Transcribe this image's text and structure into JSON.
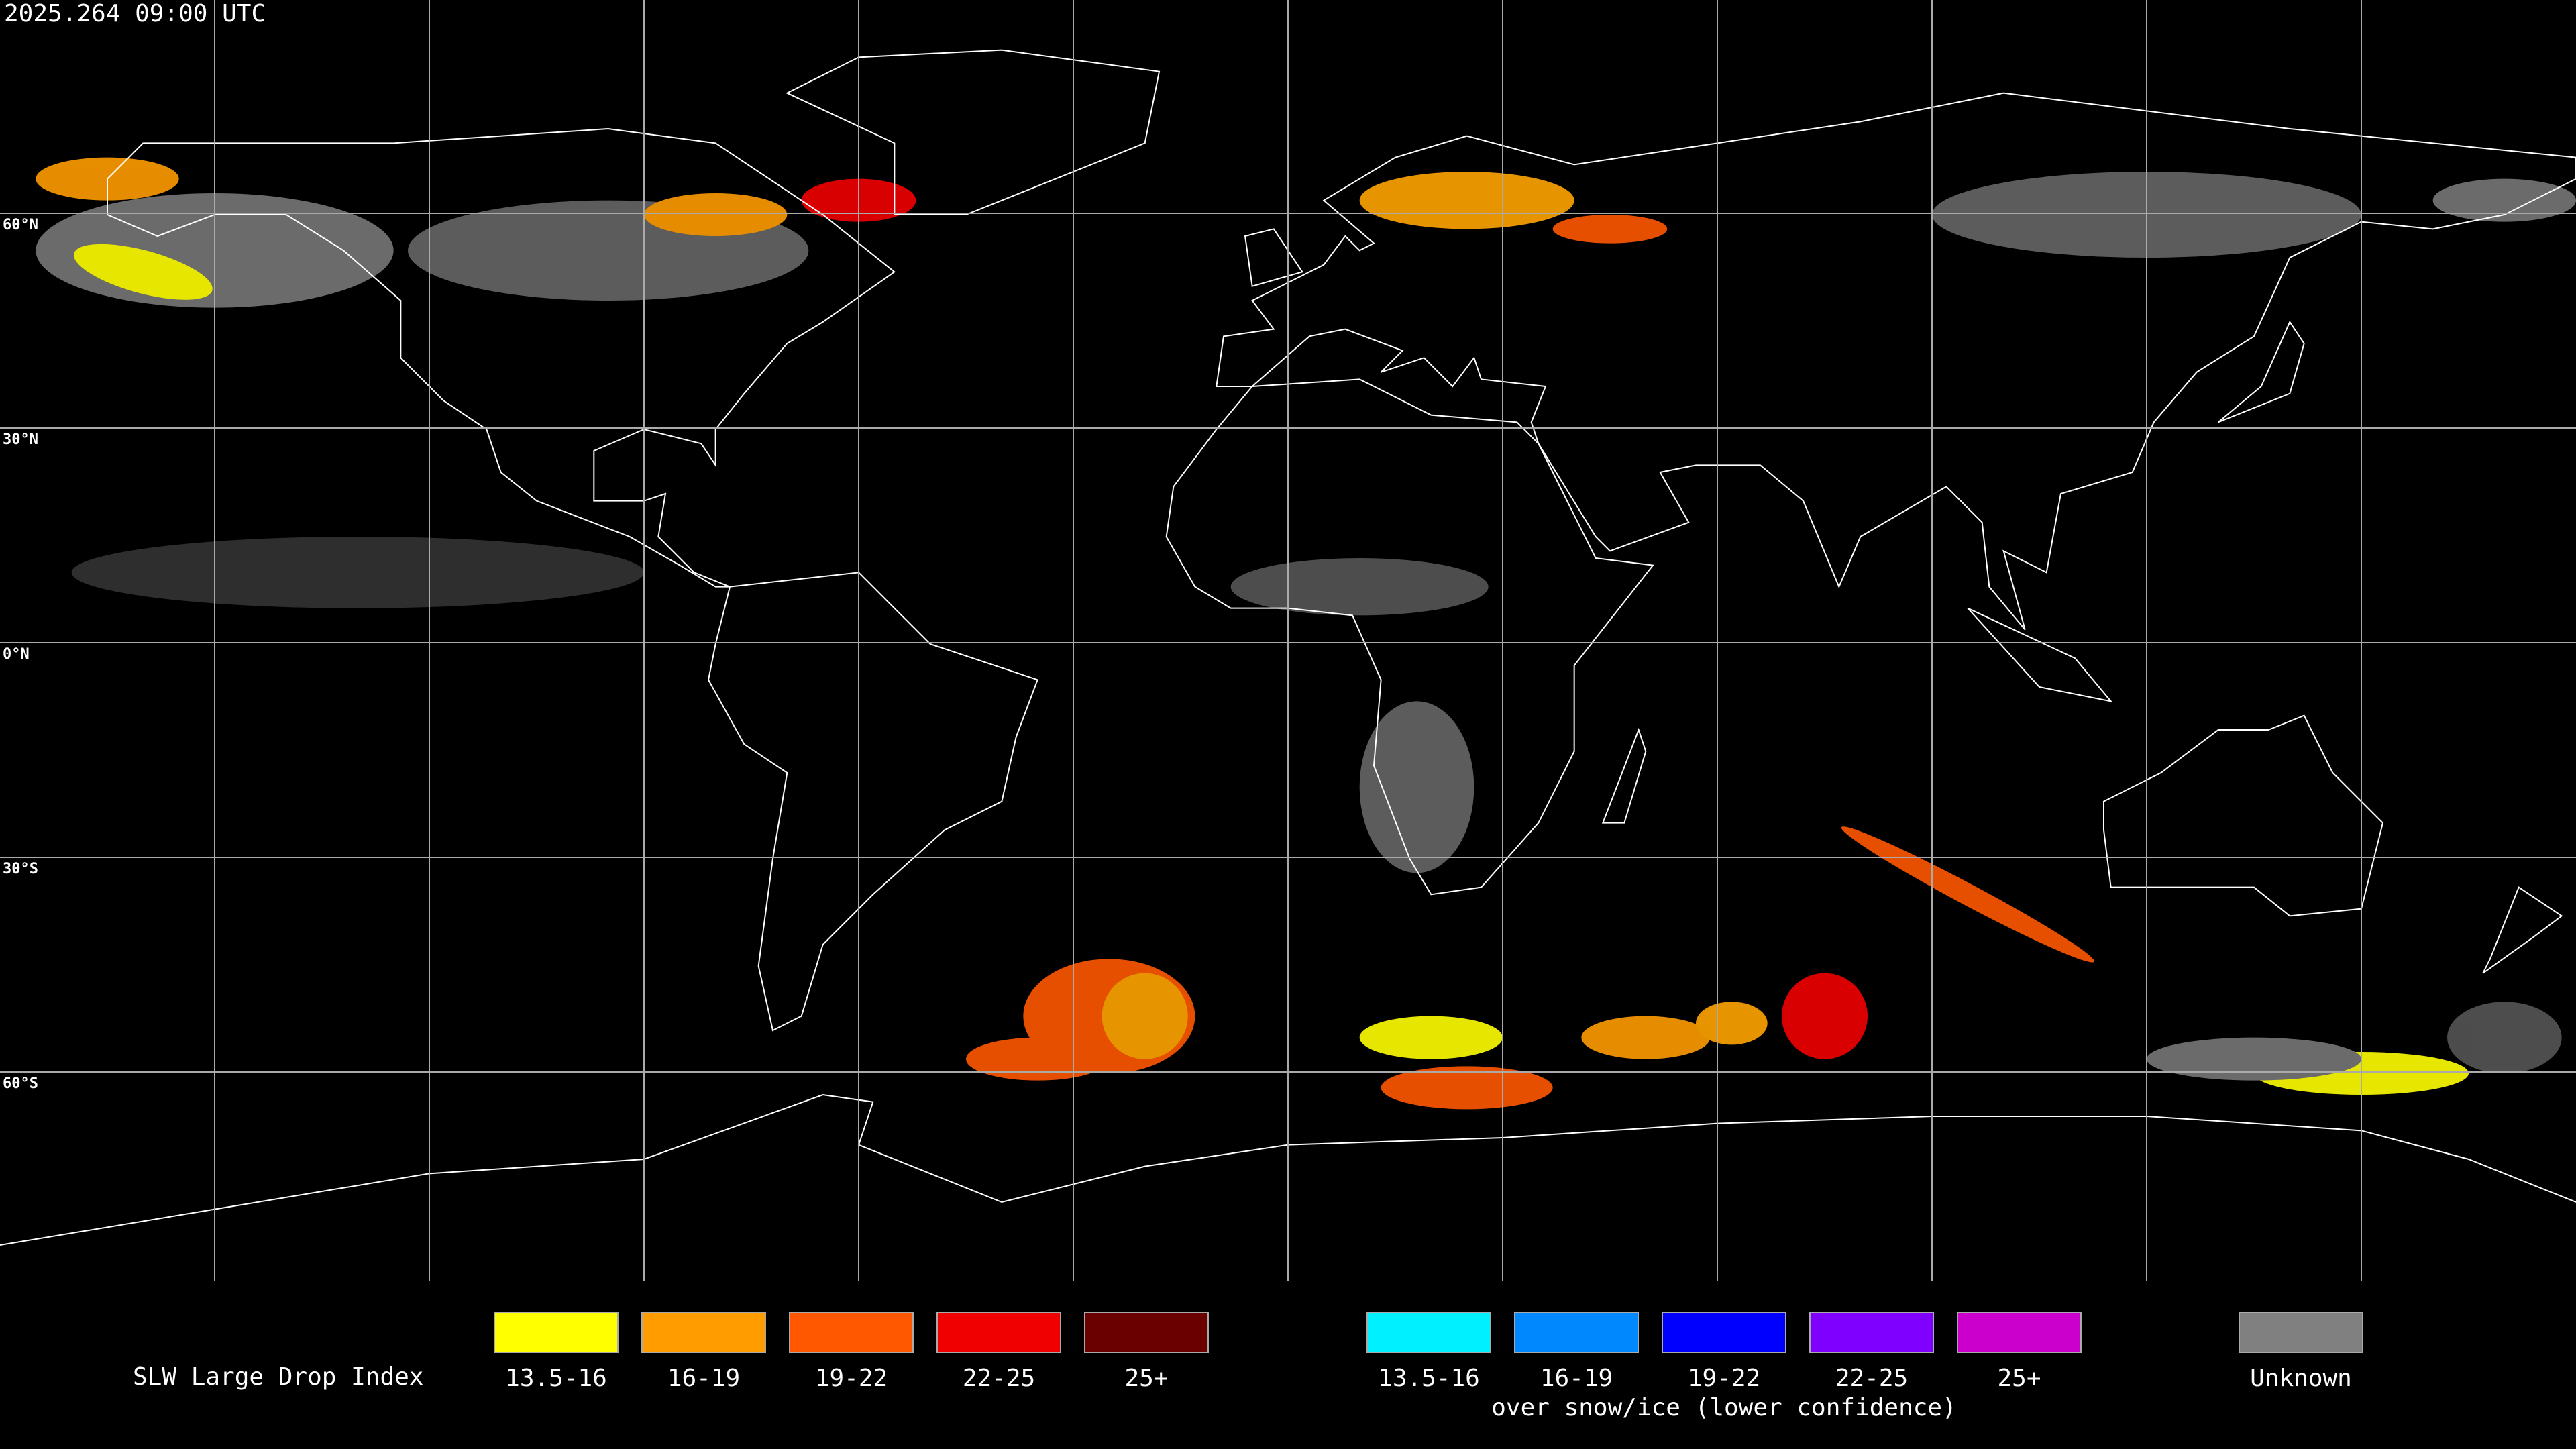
{
  "header": {
    "timestamp": "2025.264 09:00 UTC"
  },
  "map": {
    "latitude_labels": [
      "60°N",
      "30°N",
      "0°N",
      "30°S",
      "60°S"
    ]
  },
  "legend": {
    "title": "SLW Large Drop Index",
    "groups": [
      {
        "items": [
          {
            "label": "13.5-16",
            "color": "#ffff00"
          },
          {
            "label": "16-19",
            "color": "#ff9c00"
          },
          {
            "label": "19-22",
            "color": "#ff5800"
          },
          {
            "label": "22-25",
            "color": "#f00000"
          },
          {
            "label": "25+",
            "color": "#6a0000"
          }
        ]
      },
      {
        "items": [
          {
            "label": "13.5-16",
            "color": "#00f0ff"
          },
          {
            "label": "16-19",
            "color": "#0088ff"
          },
          {
            "label": "19-22",
            "color": "#0000ff"
          },
          {
            "label": "22-25",
            "color": "#8000ff"
          },
          {
            "label": "25+",
            "color": "#cc00cc"
          }
        ],
        "caption": "over snow/ice (lower confidence)"
      },
      {
        "items": [
          {
            "label": "Unknown",
            "color": "#808080"
          }
        ]
      }
    ]
  }
}
